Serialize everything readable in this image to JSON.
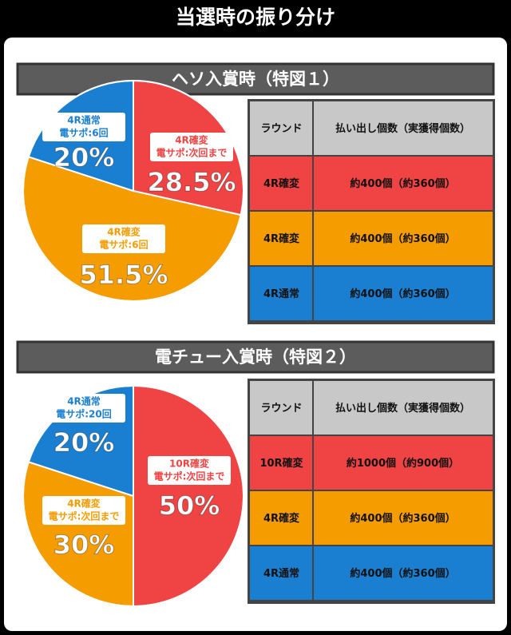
{
  "title": "当選時の振り分け",
  "chart_data": [
    {
      "type": "pie",
      "title": "ヘソ入賞時（特図１）",
      "categories": [
        "4R確変",
        "4R確変",
        "4R通常"
      ],
      "sublabels": [
        "電サポ:次回まで",
        "電サポ:6回",
        "電サポ:6回"
      ],
      "values": [
        28.5,
        51.5,
        20
      ],
      "value_labels": [
        "28.5%",
        "51.5%",
        "20%"
      ],
      "colors": [
        "#f04343",
        "#f59c00",
        "#1a7fd0"
      ]
    },
    {
      "type": "pie",
      "title": "電チュー入賞時（特図２）",
      "categories": [
        "10R確変",
        "4R確変",
        "4R通常"
      ],
      "sublabels": [
        "電サポ:次回まで",
        "電サポ:次回まで",
        "電サポ:20回"
      ],
      "values": [
        50,
        30,
        20
      ],
      "value_labels": [
        "50%",
        "30%",
        "20%"
      ],
      "colors": [
        "#f04343",
        "#f59c00",
        "#1a7fd0"
      ]
    }
  ],
  "tables": [
    {
      "header": [
        "ラウンド",
        "払い出し個数（実獲得個数）"
      ],
      "rows": [
        [
          "4R確変",
          "約400個（約360個）"
        ],
        [
          "4R確変",
          "約400個（約360個）"
        ],
        [
          "4R通常",
          "約400個（約360個）"
        ]
      ]
    },
    {
      "header": [
        "ラウンド",
        "払い出し個数（実獲得個数）"
      ],
      "rows": [
        [
          "10R確変",
          "約1000個（約900個）"
        ],
        [
          "4R確変",
          "約400個（約360個）"
        ],
        [
          "4R通常",
          "約400個（約360個）"
        ]
      ]
    }
  ]
}
